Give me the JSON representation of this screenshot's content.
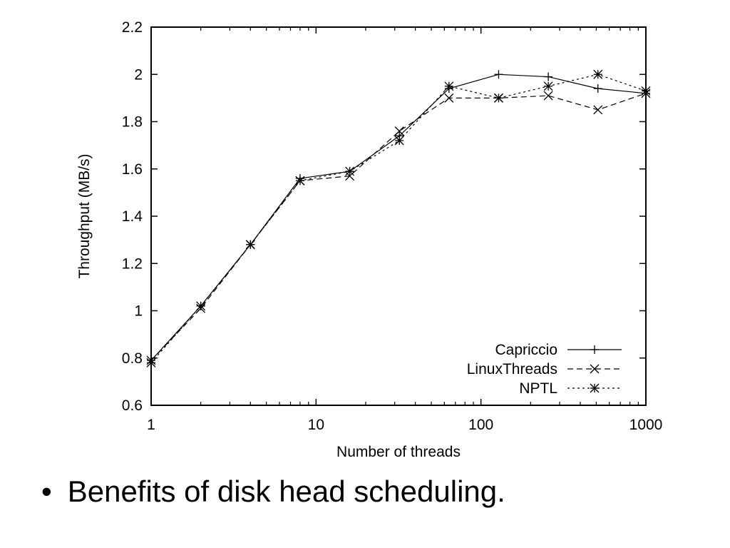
{
  "chart_data": {
    "type": "line",
    "xscale": "log",
    "xlim": [
      1,
      1000
    ],
    "ylim": [
      0.6,
      2.2
    ],
    "xticks": [
      1,
      10,
      100,
      1000
    ],
    "xtick_labels": [
      "1",
      "10",
      "100",
      "1000"
    ],
    "yticks": [
      0.6,
      0.8,
      1,
      1.2,
      1.4,
      1.6,
      1.8,
      2,
      2.2
    ],
    "ytick_labels": [
      "0.6",
      "0.8",
      "1",
      "1.2",
      "1.4",
      "1.6",
      "1.8",
      "2",
      "2.2"
    ],
    "xlabel": "Number of threads",
    "ylabel": "Throughput (MB/s)",
    "grid": false,
    "legend_position": "bottom-right",
    "x": [
      1,
      2,
      4,
      8,
      16,
      32,
      64,
      128,
      256,
      512,
      1000
    ],
    "series": [
      {
        "name": "Capriccio",
        "marker": "plus",
        "dash": "solid",
        "values": [
          0.79,
          1.02,
          1.28,
          1.56,
          1.59,
          1.74,
          1.94,
          2.0,
          1.99,
          1.94,
          1.92
        ]
      },
      {
        "name": "LinuxThreads",
        "marker": "cross",
        "dash": "dashed",
        "values": [
          0.79,
          1.01,
          1.28,
          1.55,
          1.57,
          1.76,
          1.9,
          1.9,
          1.91,
          1.85,
          1.92
        ]
      },
      {
        "name": "NPTL",
        "marker": "star",
        "dash": "dotted",
        "values": [
          0.78,
          1.02,
          1.28,
          1.55,
          1.59,
          1.72,
          1.95,
          1.9,
          1.95,
          2.0,
          1.93
        ]
      }
    ]
  },
  "caption": {
    "bullet": "•",
    "text": "Benefits of disk head scheduling."
  }
}
